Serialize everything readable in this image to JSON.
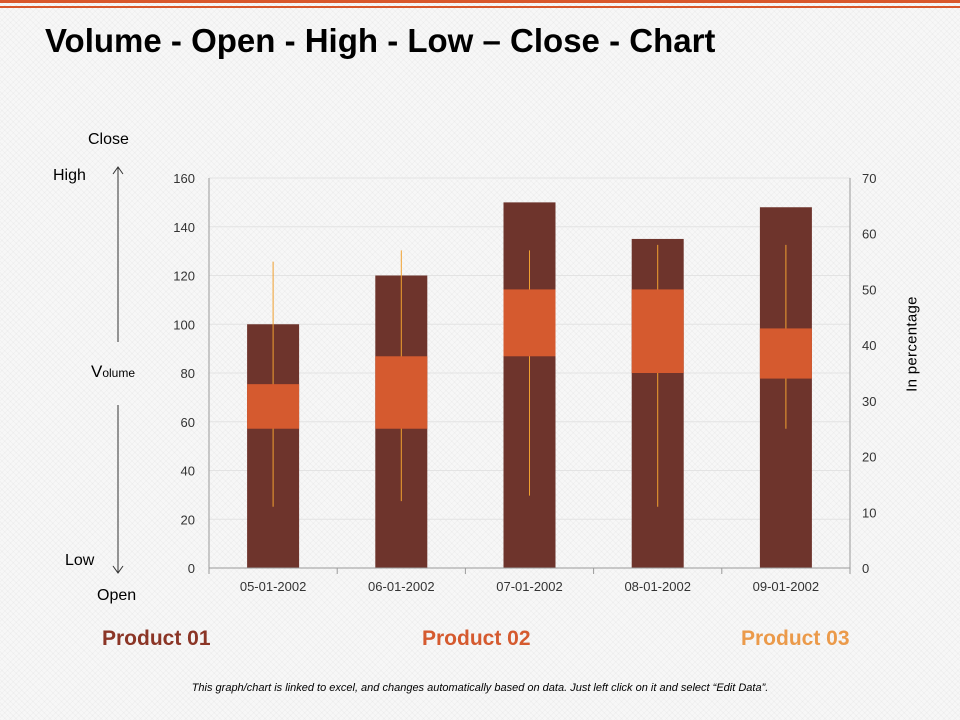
{
  "header": {
    "title": "Volume - Open - High - Low – Close - Chart"
  },
  "side_labels": {
    "close": "Close",
    "high": "High",
    "volume_initial": "V",
    "volume_rest": "olume",
    "low": "Low",
    "open": "Open"
  },
  "products": [
    {
      "label": "Product 01",
      "color": "#8b3526"
    },
    {
      "label": "Product 02",
      "color": "#d55a2f"
    },
    {
      "label": "Product 03",
      "color": "#eb9a4a"
    }
  ],
  "footnote": "This graph/chart is linked to excel, and changes automatically based on data. Just left click on it and select “Edit Data”.",
  "colors": {
    "volume": "#6e342c",
    "open_close_box": "#d55a2f",
    "high_low_line": "#f0a030",
    "accent": "#d9572b"
  },
  "chart_data": {
    "type": "bar",
    "subtype": "volume-open-high-low-close",
    "categories": [
      "05-01-2002",
      "06-01-2002",
      "07-01-2002",
      "08-01-2002",
      "09-01-2002"
    ],
    "volume": [
      100,
      120,
      150,
      135,
      148
    ],
    "open": [
      25,
      25,
      38,
      35,
      34
    ],
    "high": [
      55,
      57,
      57,
      58,
      58
    ],
    "low": [
      11,
      12,
      13,
      11,
      25
    ],
    "close": [
      33,
      38,
      50,
      50,
      43
    ],
    "y_left": {
      "min": 0,
      "max": 160,
      "ticks": [
        0,
        20,
        40,
        60,
        80,
        100,
        120,
        140,
        160
      ]
    },
    "y_right": {
      "label": "In percentage",
      "min": 0,
      "max": 70,
      "ticks": [
        0,
        10,
        20,
        30,
        40,
        50,
        60,
        70
      ]
    },
    "grid": true,
    "legend": "none"
  }
}
